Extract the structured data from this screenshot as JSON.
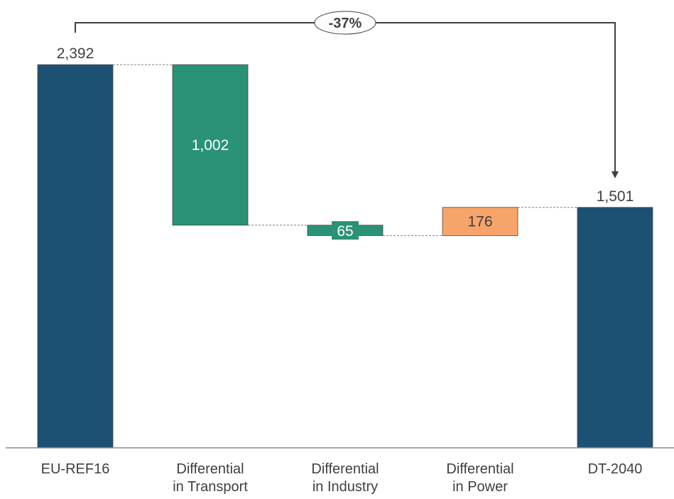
{
  "chart_data": {
    "type": "bar",
    "subtype": "waterfall",
    "categories": [
      [
        "EU-REF16"
      ],
      [
        "Differential",
        "in Transport"
      ],
      [
        "Differential",
        "in Industry"
      ],
      [
        "Differential",
        "in Power"
      ],
      [
        "DT-2040"
      ]
    ],
    "steps": [
      {
        "kind": "total",
        "value": 2392,
        "label": "2,392"
      },
      {
        "kind": "delta",
        "value": -1002,
        "label": "1,002"
      },
      {
        "kind": "delta",
        "value": -65,
        "label": "65"
      },
      {
        "kind": "delta",
        "value": 176,
        "label": "176"
      },
      {
        "kind": "total",
        "value": 1501,
        "label": "1,501"
      }
    ],
    "change_annotation": "-37%",
    "ylim": [
      0,
      2392
    ],
    "axes_visible": false,
    "grid": false,
    "colors": {
      "total": "#1d5174",
      "decrease": "#2a9277",
      "increase": "#f7a46b",
      "connector": "#7f7f7f",
      "text": "#404040"
    }
  }
}
